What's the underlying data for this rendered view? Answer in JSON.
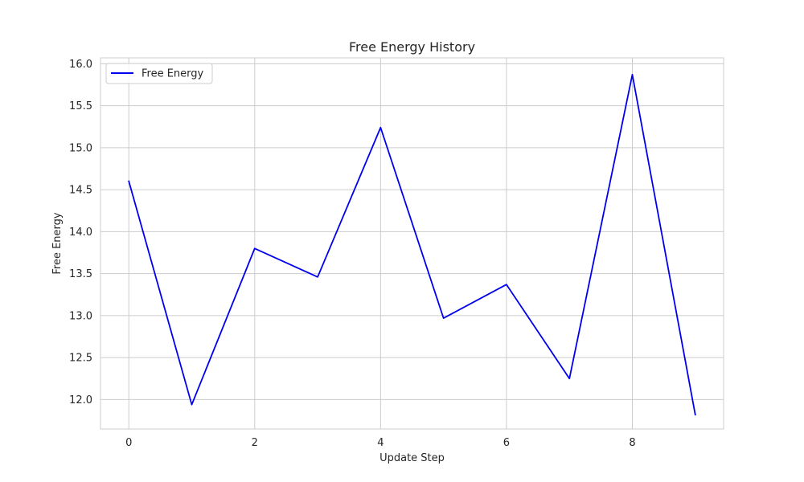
{
  "chart_data": {
    "type": "line",
    "title": "Free Energy History",
    "xlabel": "Update Step",
    "ylabel": "Free Energy",
    "xlim": [
      -0.45,
      9.45
    ],
    "ylim": [
      11.65,
      16.07
    ],
    "x_ticks": [
      0,
      2,
      4,
      6,
      8
    ],
    "x_tick_labels": [
      "0",
      "2",
      "4",
      "6",
      "8"
    ],
    "y_ticks": [
      12.0,
      12.5,
      13.0,
      13.5,
      14.0,
      14.5,
      15.0,
      15.5,
      16.0
    ],
    "y_tick_labels": [
      "12.0",
      "12.5",
      "13.0",
      "13.5",
      "14.0",
      "14.5",
      "15.0",
      "15.5",
      "16.0"
    ],
    "grid": true,
    "legend_position": "top-left",
    "series": [
      {
        "name": "Free Energy",
        "color": "#0000ee",
        "x": [
          0,
          1,
          2,
          3,
          4,
          5,
          6,
          7,
          8,
          9
        ],
        "values": [
          14.6,
          11.94,
          13.8,
          13.46,
          15.24,
          12.97,
          13.37,
          12.25,
          15.87,
          11.82
        ]
      }
    ],
    "colors": {
      "grid": "#cccccc",
      "frame": "#cccccc",
      "text": "#262626"
    }
  }
}
